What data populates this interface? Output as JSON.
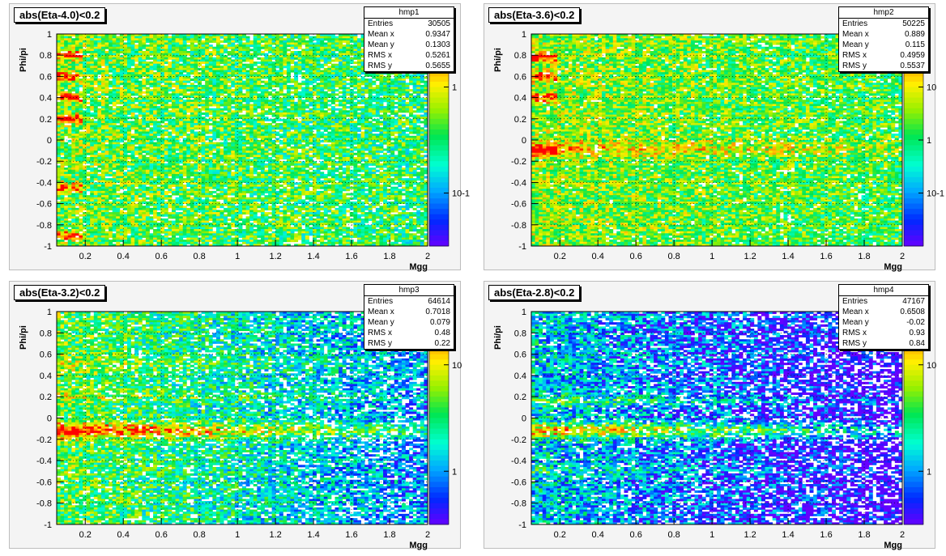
{
  "chart_data": [
    {
      "type": "heatmap",
      "title": "abs(Eta-4.0)<0.2",
      "xlabel": "Mgg",
      "ylabel": "Phi/pi",
      "xlim": [
        0.05,
        2.0
      ],
      "ylim": [
        -1,
        1
      ],
      "x_ticks": [
        "0.2",
        "0.4",
        "0.6",
        "0.8",
        "1",
        "1.2",
        "1.4",
        "1.6",
        "1.8",
        "2"
      ],
      "y_ticks": [
        "-1",
        "-0.8",
        "-0.6",
        "-0.4",
        "-0.2",
        "0",
        "0.2",
        "0.4",
        "0.6",
        "0.8",
        "1"
      ],
      "z_scale": "log",
      "colorbar_labels": [
        "1",
        "10-1"
      ],
      "grid": true,
      "stats": {
        "name": "hmp1",
        "rows": [
          {
            "label": "Entries",
            "value": "30505"
          },
          {
            "label": "Mean x",
            "value": "0.9347"
          },
          {
            "label": "Mean y",
            "value": "0.1303"
          },
          {
            "label": "RMS x",
            "value": "0.5261"
          },
          {
            "label": "RMS y",
            "value": "0.5655"
          }
        ]
      }
    },
    {
      "type": "heatmap",
      "title": "abs(Eta-3.6)<0.2",
      "xlabel": "Mgg",
      "ylabel": "Phi/pi",
      "xlim": [
        0.05,
        2.0
      ],
      "ylim": [
        -1,
        1
      ],
      "x_ticks": [
        "0.2",
        "0.4",
        "0.6",
        "0.8",
        "1",
        "1.2",
        "1.4",
        "1.6",
        "1.8",
        "2"
      ],
      "y_ticks": [
        "-1",
        "-0.8",
        "-0.6",
        "-0.4",
        "-0.2",
        "0",
        "0.2",
        "0.4",
        "0.6",
        "0.8",
        "1"
      ],
      "z_scale": "log",
      "colorbar_labels": [
        "10",
        "1",
        "10-1"
      ],
      "grid": true,
      "stats": {
        "name": "hmp2",
        "rows": [
          {
            "label": "Entries",
            "value": "50225"
          },
          {
            "label": "Mean x",
            "value": "0.889"
          },
          {
            "label": "Mean y",
            "value": "0.115"
          },
          {
            "label": "RMS x",
            "value": "0.4959"
          },
          {
            "label": "RMS y",
            "value": "0.5537"
          }
        ]
      }
    },
    {
      "type": "heatmap",
      "title": "abs(Eta-3.2)<0.2",
      "xlabel": "Mgg",
      "ylabel": "Phi/pi",
      "xlim": [
        0.05,
        2.0
      ],
      "ylim": [
        -1,
        1
      ],
      "x_ticks": [
        "0.2",
        "0.4",
        "0.6",
        "0.8",
        "1",
        "1.2",
        "1.4",
        "1.6",
        "1.8",
        "2"
      ],
      "y_ticks": [
        "-1",
        "-0.8",
        "-0.6",
        "-0.4",
        "-0.2",
        "0",
        "0.2",
        "0.4",
        "0.6",
        "0.8",
        "1"
      ],
      "z_scale": "log",
      "colorbar_labels": [
        "10",
        "1"
      ],
      "grid": true,
      "stats": {
        "name": "hmp3",
        "rows": [
          {
            "label": "Entries",
            "value": "64614"
          },
          {
            "label": "Mean x",
            "value": "0.7018"
          },
          {
            "label": "Mean y",
            "value": "0.079"
          },
          {
            "label": "RMS x",
            "value": "0.48"
          },
          {
            "label": "RMS y",
            "value": "0.22"
          }
        ]
      }
    },
    {
      "type": "heatmap",
      "title": "abs(Eta-2.8)<0.2",
      "xlabel": "Mgg",
      "ylabel": "Phi/pi",
      "xlim": [
        0.05,
        2.0
      ],
      "ylim": [
        -1,
        1
      ],
      "x_ticks": [
        "0.2",
        "0.4",
        "0.6",
        "0.8",
        "1",
        "1.2",
        "1.4",
        "1.6",
        "1.8",
        "2"
      ],
      "y_ticks": [
        "-1",
        "-0.8",
        "-0.6",
        "-0.4",
        "-0.2",
        "0",
        "0.2",
        "0.4",
        "0.6",
        "0.8",
        "1"
      ],
      "z_scale": "log",
      "colorbar_labels": [
        "10",
        "1"
      ],
      "grid": true,
      "stats": {
        "name": "hmp4",
        "rows": [
          {
            "label": "Entries",
            "value": "47167"
          },
          {
            "label": "Mean x",
            "value": "0.6508"
          },
          {
            "label": "Mean y",
            "value": "-0.02"
          },
          {
            "label": "RMS x",
            "value": "0.93"
          },
          {
            "label": "RMS y",
            "value": "0.84"
          }
        ]
      }
    }
  ]
}
